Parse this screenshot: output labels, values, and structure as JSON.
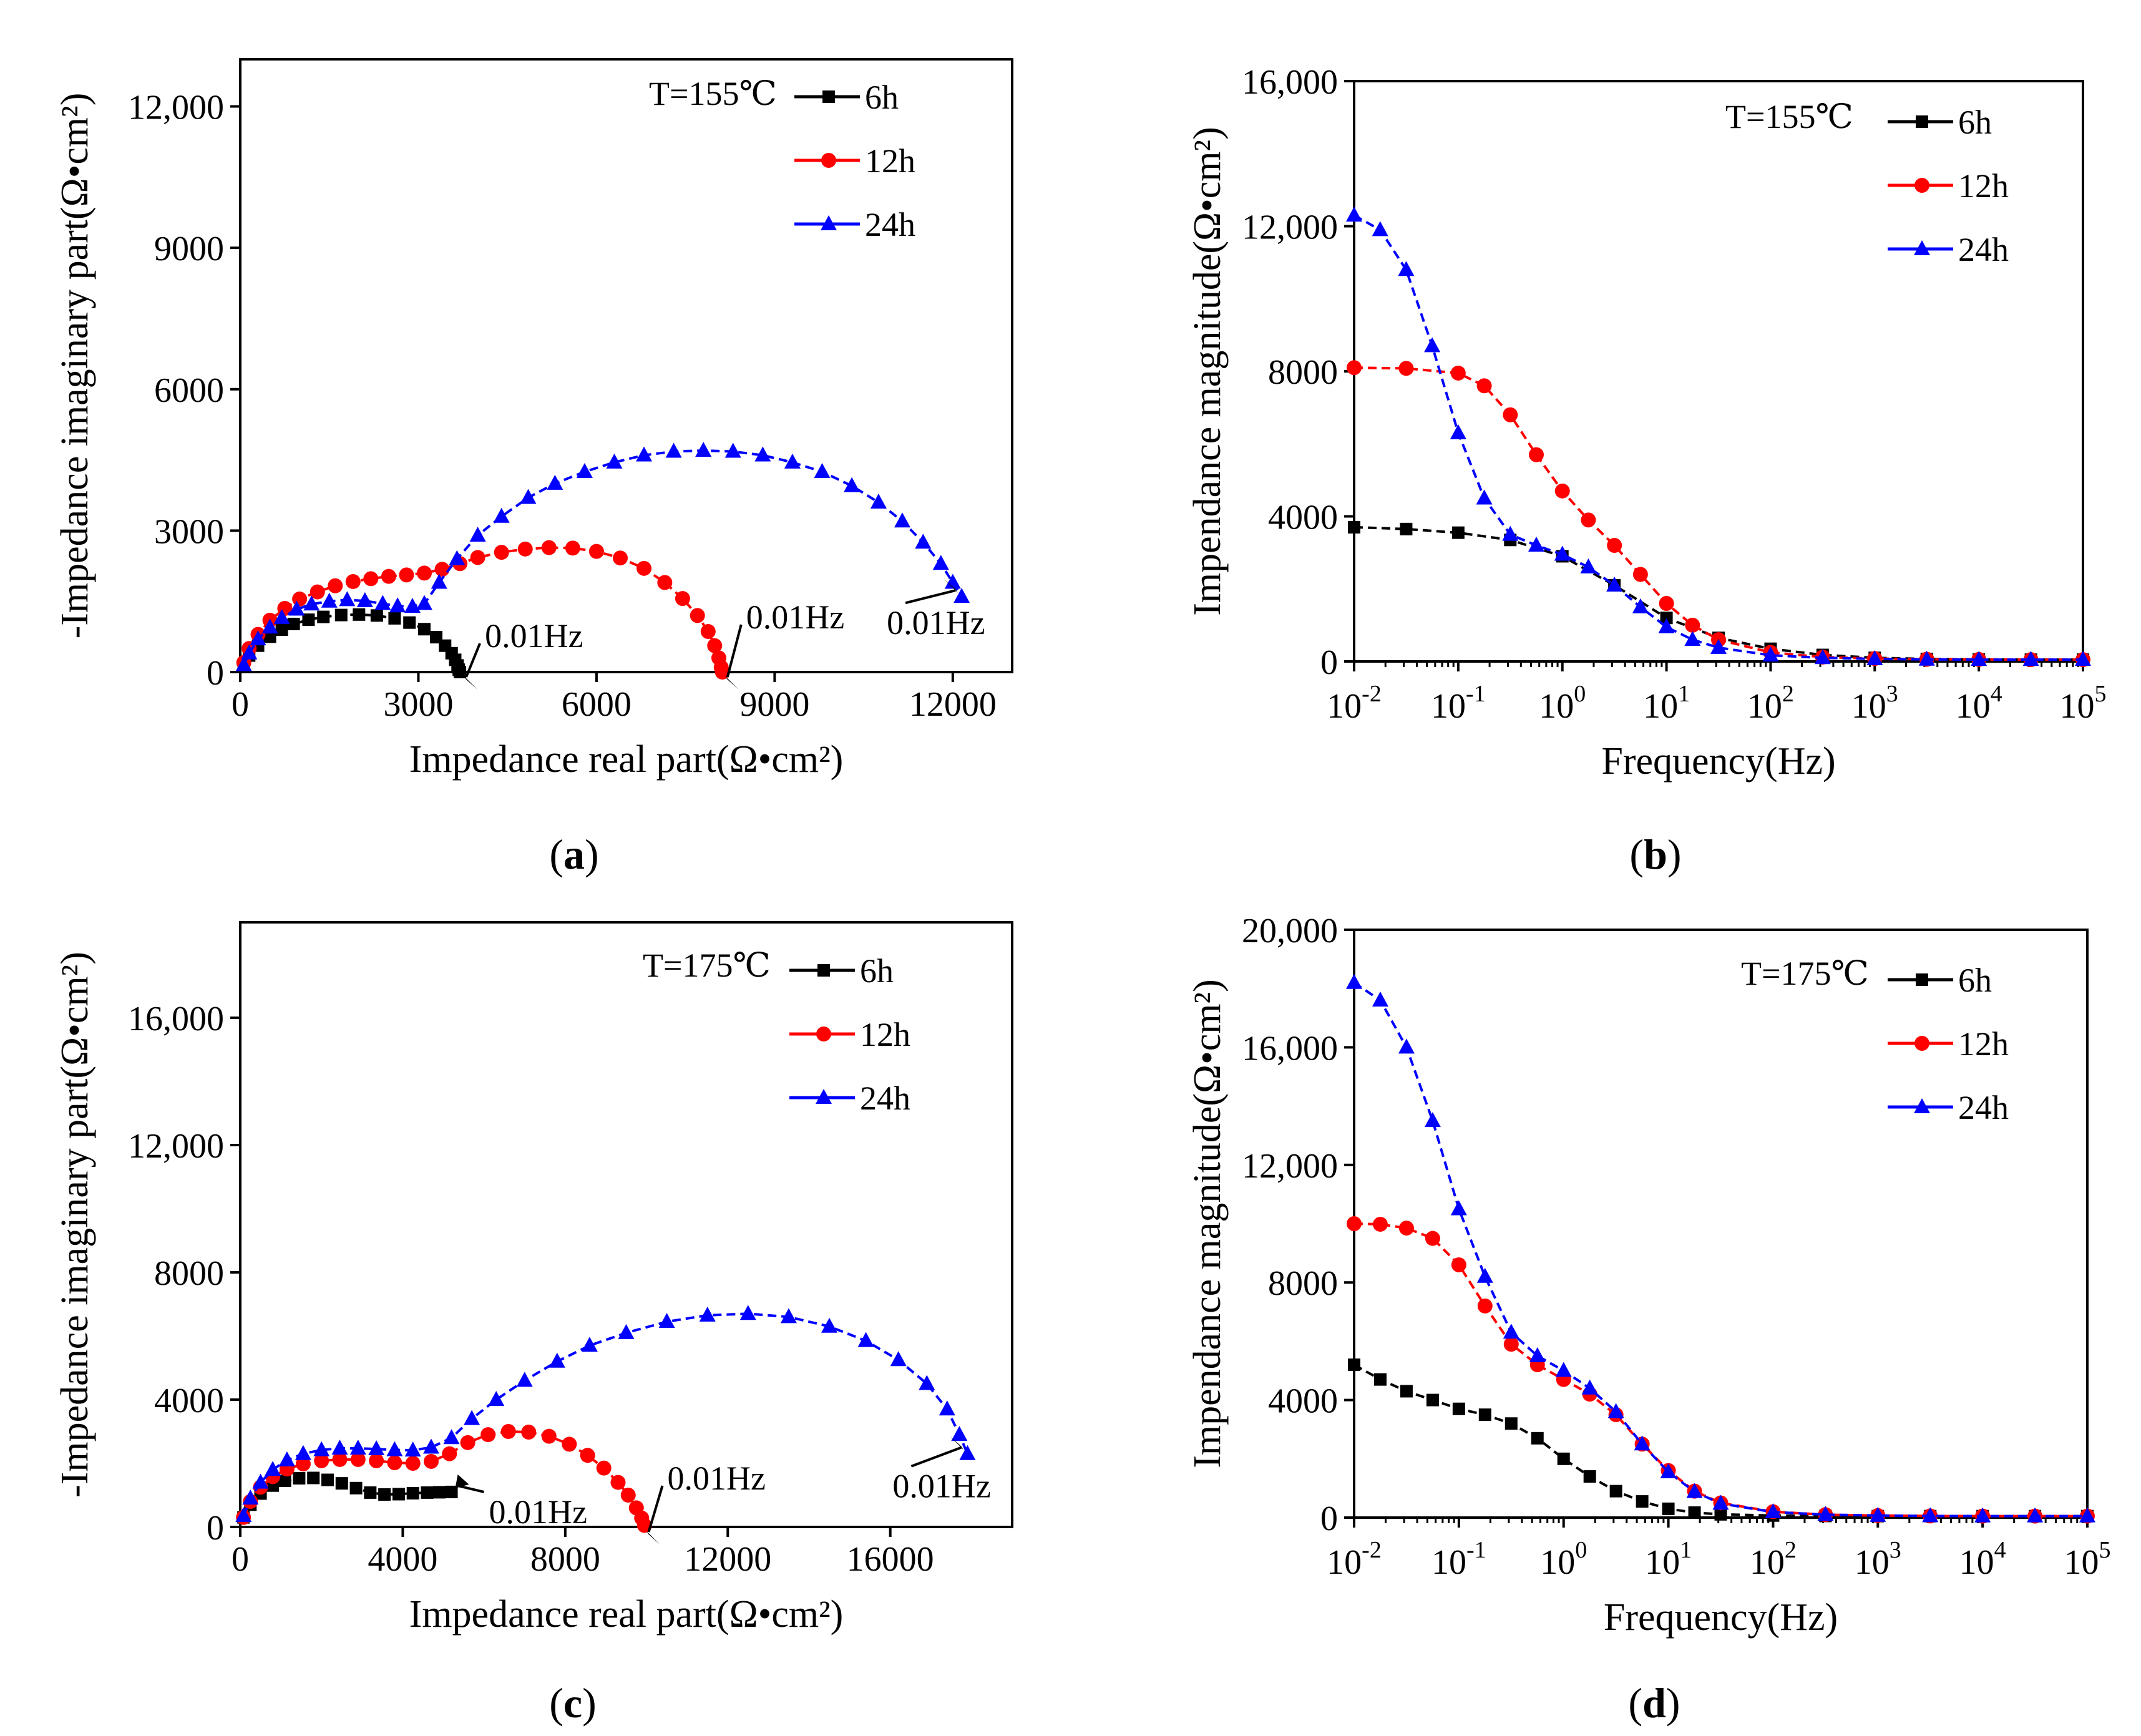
{
  "figure": {
    "panels": [
      {
        "label": "a"
      },
      {
        "label": "b"
      },
      {
        "label": "c"
      },
      {
        "label": "d"
      }
    ]
  },
  "chart_data": [
    {
      "id": "a",
      "type": "scatter",
      "title": "",
      "annotation": "T=155℃",
      "xlabel": "Impedance real part(Ω•cm²)",
      "ylabel": "-Impedance imaginary part(Ω•cm²)",
      "xlim": [
        0,
        13000
      ],
      "ylim": [
        0,
        13000
      ],
      "xticks": [
        0,
        3000,
        6000,
        9000,
        12000
      ],
      "xticklabels": [
        "0",
        "3000",
        "6000",
        "9000",
        "12000"
      ],
      "yticks": [
        0,
        3000,
        6000,
        9000,
        12000
      ],
      "yticklabels": [
        "0",
        "3000",
        "6000",
        "9000",
        "12,000"
      ],
      "legend": [
        "6h",
        "12h",
        "24h"
      ],
      "freq_annotations": [
        {
          "text": "0.01Hz",
          "series": "6h",
          "x": 3700,
          "y": 0
        },
        {
          "text": "0.01Hz",
          "series": "12h",
          "x": 8100,
          "y": 0
        },
        {
          "text": "0.01Hz",
          "series": "24h",
          "x": 12150,
          "y": 1600
        }
      ],
      "series": [
        {
          "name": "6h",
          "color": "#000000",
          "marker": "square",
          "x": [
            60,
            150,
            300,
            500,
            700,
            900,
            1150,
            1400,
            1700,
            2000,
            2300,
            2600,
            2850,
            3100,
            3300,
            3450,
            3560,
            3620,
            3660,
            3680,
            3700
          ],
          "y": [
            150,
            350,
            560,
            750,
            900,
            1020,
            1110,
            1170,
            1210,
            1220,
            1200,
            1140,
            1050,
            910,
            740,
            560,
            400,
            260,
            140,
            50,
            0
          ]
        },
        {
          "name": "12h",
          "color": "#ff0000",
          "marker": "circle",
          "x": [
            60,
            150,
            300,
            500,
            750,
            1000,
            1300,
            1600,
            1900,
            2200,
            2500,
            2800,
            3100,
            3400,
            3700,
            4000,
            4400,
            4800,
            5200,
            5600,
            6000,
            6400,
            6800,
            7150,
            7450,
            7700,
            7880,
            7990,
            8060,
            8100,
            8120
          ],
          "y": [
            200,
            500,
            800,
            1100,
            1350,
            1550,
            1700,
            1830,
            1920,
            1980,
            2030,
            2060,
            2100,
            2180,
            2300,
            2430,
            2540,
            2610,
            2640,
            2630,
            2560,
            2420,
            2200,
            1900,
            1560,
            1200,
            860,
            560,
            300,
            100,
            0
          ]
        },
        {
          "name": "24h",
          "color": "#0000ff",
          "marker": "triangle",
          "x": [
            60,
            150,
            300,
            500,
            700,
            950,
            1200,
            1500,
            1800,
            2100,
            2400,
            2650,
            2900,
            3100,
            3350,
            3650,
            4000,
            4400,
            4850,
            5300,
            5800,
            6300,
            6800,
            7300,
            7800,
            8300,
            8800,
            9300,
            9800,
            10300,
            10750,
            11150,
            11500,
            11800,
            12000,
            12150
          ],
          "y": [
            150,
            400,
            700,
            950,
            1150,
            1330,
            1440,
            1500,
            1530,
            1510,
            1450,
            1400,
            1390,
            1450,
            1900,
            2400,
            2900,
            3300,
            3700,
            4000,
            4250,
            4450,
            4600,
            4680,
            4700,
            4680,
            4600,
            4450,
            4250,
            3950,
            3600,
            3200,
            2750,
            2300,
            1900,
            1600
          ]
        }
      ]
    },
    {
      "id": "b",
      "type": "scatter",
      "title": "",
      "annotation": "T=155℃",
      "xlabel": "Frequency(Hz)",
      "ylabel": "Impendance magnitude(Ω•cm²)",
      "xscale": "log",
      "xlim": [
        0.01,
        100000
      ],
      "ylim": [
        0,
        16000
      ],
      "xticks": [
        0.01,
        0.1,
        1,
        10,
        100,
        1000,
        10000,
        100000
      ],
      "xticklabels": [
        "-2",
        "-1",
        "0",
        "1",
        "2",
        "3",
        "4",
        "5"
      ],
      "yticks": [
        0,
        4000,
        8000,
        12000,
        16000
      ],
      "yticklabels": [
        "0",
        "4000",
        "8000",
        "12,000",
        "16,000"
      ],
      "legend": [
        "6h",
        "12h",
        "24h"
      ],
      "series": [
        {
          "name": "6h",
          "color": "#000000",
          "marker": "square",
          "logx": [
            -2,
            -1.5,
            -1,
            -0.5,
            0,
            0.5,
            1,
            1.5,
            2,
            2.5,
            3,
            3.5,
            4,
            4.5,
            5
          ],
          "y": [
            3700,
            3650,
            3550,
            3350,
            2900,
            2100,
            1200,
            650,
            350,
            180,
            100,
            70,
            55,
            50,
            50
          ]
        },
        {
          "name": "12h",
          "color": "#ff0000",
          "marker": "circle",
          "logx": [
            -2,
            -1.5,
            -1,
            -0.75,
            -0.5,
            -0.25,
            0,
            0.25,
            0.5,
            0.75,
            1,
            1.25,
            1.5,
            2,
            2.5,
            3,
            3.5,
            4,
            4.5,
            5
          ],
          "y": [
            8100,
            8080,
            7950,
            7600,
            6800,
            5700,
            4700,
            3900,
            3200,
            2400,
            1600,
            1000,
            600,
            250,
            120,
            80,
            60,
            55,
            50,
            50
          ]
        },
        {
          "name": "24h",
          "color": "#0000ff",
          "marker": "triangle",
          "logx": [
            -2,
            -1.75,
            -1.5,
            -1.25,
            -1,
            -0.75,
            -0.5,
            -0.25,
            0,
            0.25,
            0.5,
            0.75,
            1,
            1.25,
            1.5,
            2,
            2.5,
            3,
            3.5,
            4,
            4.5,
            5
          ],
          "y": [
            12300,
            11900,
            10800,
            8700,
            6300,
            4500,
            3500,
            3200,
            2950,
            2600,
            2100,
            1500,
            950,
            600,
            380,
            170,
            100,
            70,
            55,
            50,
            50,
            50
          ]
        }
      ]
    },
    {
      "id": "c",
      "type": "scatter",
      "title": "",
      "annotation": "T=175℃",
      "xlabel": "Impedance real part(Ω•cm²)",
      "ylabel": "-Impedance imaginary part(Ω•cm²)",
      "xlim": [
        0,
        19000
      ],
      "ylim": [
        0,
        19000
      ],
      "xticks": [
        0,
        4000,
        8000,
        12000,
        16000
      ],
      "xticklabels": [
        "0",
        "4000",
        "8000",
        "12000",
        "16000"
      ],
      "yticks": [
        0,
        4000,
        8000,
        12000,
        16000
      ],
      "yticklabels": [
        "0",
        "4000",
        "8000",
        "12,000",
        "16,000"
      ],
      "legend": [
        "6h",
        "12h",
        "24h"
      ],
      "freq_annotations": [
        {
          "text": "0.01Hz",
          "series": "6h",
          "x": 5200,
          "y": 1100
        },
        {
          "text": "0.01Hz",
          "series": "12h",
          "x": 9900,
          "y": 0
        },
        {
          "text": "0.01Hz",
          "series": "24h",
          "x": 17900,
          "y": 2300
        }
      ],
      "series": [
        {
          "name": "6h",
          "color": "#000000",
          "marker": "square",
          "x": [
            80,
            250,
            500,
            800,
            1100,
            1450,
            1800,
            2150,
            2500,
            2850,
            3200,
            3550,
            3900,
            4250,
            4600,
            4900,
            5200
          ],
          "y": [
            300,
            700,
            1050,
            1300,
            1450,
            1530,
            1540,
            1480,
            1370,
            1220,
            1080,
            1020,
            1030,
            1060,
            1080,
            1090,
            1100
          ]
        },
        {
          "name": "12h",
          "color": "#ff0000",
          "marker": "circle",
          "x": [
            80,
            250,
            500,
            800,
            1150,
            1550,
            2000,
            2450,
            2900,
            3350,
            3800,
            4250,
            4700,
            5150,
            5600,
            6100,
            6600,
            7100,
            7600,
            8100,
            8550,
            8950,
            9300,
            9550,
            9750,
            9880,
            9950
          ],
          "y": [
            300,
            800,
            1250,
            1580,
            1820,
            1980,
            2080,
            2120,
            2120,
            2080,
            2020,
            2000,
            2060,
            2300,
            2650,
            2900,
            3000,
            2980,
            2850,
            2600,
            2250,
            1850,
            1400,
            1000,
            600,
            280,
            50
          ]
        },
        {
          "name": "24h",
          "color": "#0000ff",
          "marker": "triangle",
          "x": [
            80,
            250,
            500,
            800,
            1150,
            1550,
            2000,
            2450,
            2900,
            3350,
            3800,
            4250,
            4700,
            5200,
            5700,
            6300,
            7000,
            7800,
            8600,
            9500,
            10500,
            11500,
            12500,
            13500,
            14500,
            15400,
            16200,
            16900,
            17400,
            17700,
            17900
          ],
          "y": [
            350,
            900,
            1400,
            1800,
            2100,
            2300,
            2420,
            2470,
            2470,
            2450,
            2420,
            2410,
            2500,
            2800,
            3400,
            4000,
            4600,
            5200,
            5700,
            6100,
            6450,
            6650,
            6700,
            6600,
            6300,
            5850,
            5250,
            4500,
            3700,
            2900,
            2300
          ]
        }
      ]
    },
    {
      "id": "d",
      "type": "scatter",
      "title": "",
      "annotation": "T=175℃",
      "xlabel": "Frequency(Hz)",
      "ylabel": "Impendance magnitude(Ω•cm²)",
      "xscale": "log",
      "xlim": [
        0.01,
        100000
      ],
      "ylim": [
        0,
        20000
      ],
      "xticks": [
        0.01,
        0.1,
        1,
        10,
        100,
        1000,
        10000,
        100000
      ],
      "xticklabels": [
        "-2",
        "-1",
        "0",
        "1",
        "2",
        "3",
        "4",
        "5"
      ],
      "yticks": [
        0,
        4000,
        8000,
        12000,
        16000,
        20000
      ],
      "yticklabels": [
        "0",
        "4000",
        "8000",
        "12,000",
        "16,000",
        "20,000"
      ],
      "legend": [
        "6h",
        "12h",
        "24h"
      ],
      "series": [
        {
          "name": "6h",
          "color": "#000000",
          "marker": "square",
          "logx": [
            -2,
            -1.75,
            -1.5,
            -1.25,
            -1,
            -0.75,
            -0.5,
            -0.25,
            0,
            0.25,
            0.5,
            0.75,
            1,
            1.25,
            1.5,
            2,
            2.5,
            3,
            3.5,
            4,
            4.5,
            5
          ],
          "y": [
            5200,
            4700,
            4300,
            4000,
            3700,
            3500,
            3200,
            2700,
            2000,
            1400,
            900,
            550,
            300,
            170,
            110,
            70,
            55,
            50,
            50,
            50,
            50,
            50
          ]
        },
        {
          "name": "12h",
          "color": "#ff0000",
          "marker": "circle",
          "logx": [
            -2,
            -1.75,
            -1.5,
            -1.25,
            -1,
            -0.75,
            -0.5,
            -0.25,
            0,
            0.25,
            0.5,
            0.75,
            1,
            1.25,
            1.5,
            2,
            2.5,
            3,
            3.5,
            4,
            4.5,
            5
          ],
          "y": [
            10000,
            9980,
            9850,
            9500,
            8600,
            7200,
            5900,
            5200,
            4700,
            4200,
            3500,
            2500,
            1600,
            900,
            500,
            200,
            100,
            70,
            55,
            50,
            50,
            50
          ]
        },
        {
          "name": "24h",
          "color": "#0000ff",
          "marker": "triangle",
          "logx": [
            -2,
            -1.75,
            -1.5,
            -1.25,
            -1,
            -0.75,
            -0.5,
            -0.25,
            0,
            0.25,
            0.5,
            0.75,
            1,
            1.25,
            1.5,
            2,
            2.5,
            3,
            3.5,
            4,
            4.5,
            5
          ],
          "y": [
            18200,
            17600,
            16000,
            13500,
            10500,
            8200,
            6300,
            5500,
            5000,
            4400,
            3600,
            2500,
            1550,
            880,
            480,
            190,
            100,
            70,
            55,
            50,
            50,
            50
          ]
        }
      ]
    }
  ]
}
